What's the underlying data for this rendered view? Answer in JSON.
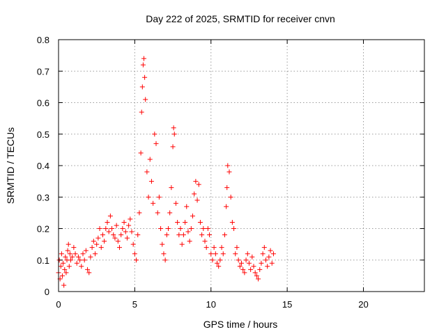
{
  "chart_data": {
    "type": "scatter",
    "title": "Day 222 of 2025, SRMTID for receiver cnvn",
    "xlabel": "GPS time / hours",
    "ylabel": "SRMTID / TECUs",
    "xlim": [
      0,
      24
    ],
    "ylim": [
      0,
      0.8
    ],
    "xticks": [
      0,
      5,
      10,
      15,
      20
    ],
    "yticks": [
      0,
      0.1,
      0.2,
      0.3,
      0.4,
      0.5,
      0.6,
      0.7,
      0.8
    ],
    "grid": true,
    "marker": "+",
    "color": "#ff0000",
    "series": [
      {
        "name": "cnvn",
        "x": [
          0.0,
          0.05,
          0.1,
          0.15,
          0.2,
          0.25,
          0.3,
          0.35,
          0.4,
          0.45,
          0.5,
          0.55,
          0.6,
          0.65,
          0.7,
          0.75,
          0.8,
          0.9,
          1.0,
          1.1,
          1.2,
          1.3,
          1.4,
          1.5,
          1.6,
          1.7,
          1.8,
          1.9,
          2.0,
          2.1,
          2.2,
          2.3,
          2.4,
          2.5,
          2.6,
          2.7,
          2.8,
          2.9,
          3.0,
          3.1,
          3.2,
          3.3,
          3.4,
          3.5,
          3.6,
          3.7,
          3.8,
          3.9,
          4.0,
          4.1,
          4.2,
          4.3,
          4.4,
          4.5,
          4.6,
          4.7,
          4.8,
          4.9,
          5.0,
          5.1,
          5.2,
          5.3,
          5.4,
          5.45,
          5.5,
          5.55,
          5.6,
          5.65,
          5.7,
          5.8,
          5.9,
          6.0,
          6.1,
          6.2,
          6.3,
          6.4,
          6.5,
          6.6,
          6.7,
          6.8,
          6.9,
          7.0,
          7.1,
          7.2,
          7.3,
          7.4,
          7.5,
          7.55,
          7.6,
          7.7,
          7.8,
          7.9,
          8.0,
          8.1,
          8.2,
          8.3,
          8.4,
          8.5,
          8.6,
          8.7,
          8.8,
          8.9,
          9.0,
          9.1,
          9.2,
          9.3,
          9.4,
          9.5,
          9.6,
          9.7,
          9.8,
          9.9,
          10.0,
          10.1,
          10.2,
          10.3,
          10.4,
          10.5,
          10.6,
          10.7,
          10.8,
          10.9,
          11.0,
          11.05,
          11.1,
          11.2,
          11.3,
          11.4,
          11.5,
          11.6,
          11.7,
          11.8,
          11.9,
          12.0,
          12.1,
          12.2,
          12.3,
          12.4,
          12.5,
          12.6,
          12.7,
          12.8,
          12.9,
          13.0,
          13.1,
          13.2,
          13.3,
          13.4,
          13.5,
          13.6,
          13.7,
          13.8,
          13.9,
          14.0,
          14.1
        ],
        "y": [
          0.06,
          0.1,
          0.04,
          0.08,
          0.12,
          0.05,
          0.09,
          0.02,
          0.07,
          0.11,
          0.06,
          0.1,
          0.13,
          0.15,
          0.08,
          0.12,
          0.1,
          0.11,
          0.14,
          0.12,
          0.09,
          0.11,
          0.1,
          0.08,
          0.12,
          0.1,
          0.13,
          0.07,
          0.06,
          0.11,
          0.14,
          0.16,
          0.12,
          0.15,
          0.17,
          0.2,
          0.14,
          0.18,
          0.16,
          0.2,
          0.22,
          0.19,
          0.24,
          0.2,
          0.18,
          0.17,
          0.21,
          0.16,
          0.14,
          0.18,
          0.2,
          0.22,
          0.19,
          0.17,
          0.21,
          0.23,
          0.19,
          0.15,
          0.12,
          0.1,
          0.18,
          0.25,
          0.44,
          0.57,
          0.65,
          0.72,
          0.74,
          0.68,
          0.61,
          0.38,
          0.3,
          0.42,
          0.35,
          0.28,
          0.5,
          0.47,
          0.25,
          0.3,
          0.2,
          0.15,
          0.12,
          0.1,
          0.18,
          0.2,
          0.25,
          0.33,
          0.46,
          0.52,
          0.5,
          0.28,
          0.22,
          0.18,
          0.2,
          0.15,
          0.18,
          0.22,
          0.27,
          0.19,
          0.16,
          0.2,
          0.24,
          0.31,
          0.35,
          0.29,
          0.34,
          0.22,
          0.18,
          0.2,
          0.16,
          0.14,
          0.2,
          0.18,
          0.12,
          0.1,
          0.14,
          0.12,
          0.09,
          0.08,
          0.1,
          0.14,
          0.12,
          0.18,
          0.27,
          0.33,
          0.4,
          0.38,
          0.3,
          0.22,
          0.2,
          0.12,
          0.14,
          0.1,
          0.08,
          0.09,
          0.07,
          0.06,
          0.1,
          0.12,
          0.09,
          0.07,
          0.11,
          0.08,
          0.06,
          0.05,
          0.04,
          0.07,
          0.09,
          0.12,
          0.14,
          0.1,
          0.08,
          0.11,
          0.13,
          0.09,
          0.12
        ]
      }
    ]
  }
}
